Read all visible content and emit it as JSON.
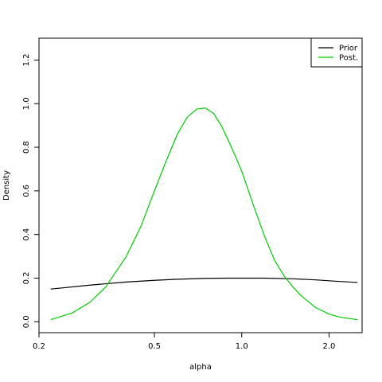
{
  "chart_data": {
    "type": "line",
    "title": "",
    "xlabel": "alpha",
    "ylabel": "Density",
    "x_scale": "log",
    "xlim": [
      0.2,
      2.6
    ],
    "ylim": [
      -0.05,
      1.3
    ],
    "x_ticks": [
      0.2,
      0.5,
      1.0,
      2.0
    ],
    "x_tick_labels": [
      "0.2",
      "0.5",
      "1.0",
      "2.0"
    ],
    "y_ticks": [
      0.0,
      0.2,
      0.4,
      0.6,
      0.8,
      1.0,
      1.2
    ],
    "y_tick_labels": [
      "0.0",
      "0.2",
      "0.4",
      "0.6",
      "0.8",
      "1.0",
      "1.2"
    ],
    "grid": false,
    "legend_position": "top-right",
    "series": [
      {
        "name": "Prior",
        "color": "#000000",
        "x": [
          0.22,
          0.3,
          0.4,
          0.5,
          0.6,
          0.75,
          0.9,
          1.0,
          1.2,
          1.5,
          1.8,
          2.1,
          2.5
        ],
        "y": [
          0.15,
          0.168,
          0.182,
          0.19,
          0.195,
          0.199,
          0.2,
          0.2,
          0.2,
          0.197,
          0.192,
          0.186,
          0.18
        ]
      },
      {
        "name": "Post.",
        "color": "#00cc00",
        "x": [
          0.22,
          0.26,
          0.3,
          0.34,
          0.4,
          0.45,
          0.5,
          0.55,
          0.6,
          0.65,
          0.7,
          0.75,
          0.8,
          0.85,
          0.9,
          0.95,
          1.0,
          1.1,
          1.2,
          1.3,
          1.4,
          1.5,
          1.6,
          1.8,
          2.0,
          2.2,
          2.5
        ],
        "y": [
          0.01,
          0.04,
          0.09,
          0.16,
          0.3,
          0.44,
          0.6,
          0.74,
          0.86,
          0.94,
          0.975,
          0.98,
          0.955,
          0.9,
          0.83,
          0.76,
          0.69,
          0.53,
          0.39,
          0.28,
          0.21,
          0.16,
          0.12,
          0.065,
          0.035,
          0.02,
          0.01
        ]
      }
    ]
  }
}
